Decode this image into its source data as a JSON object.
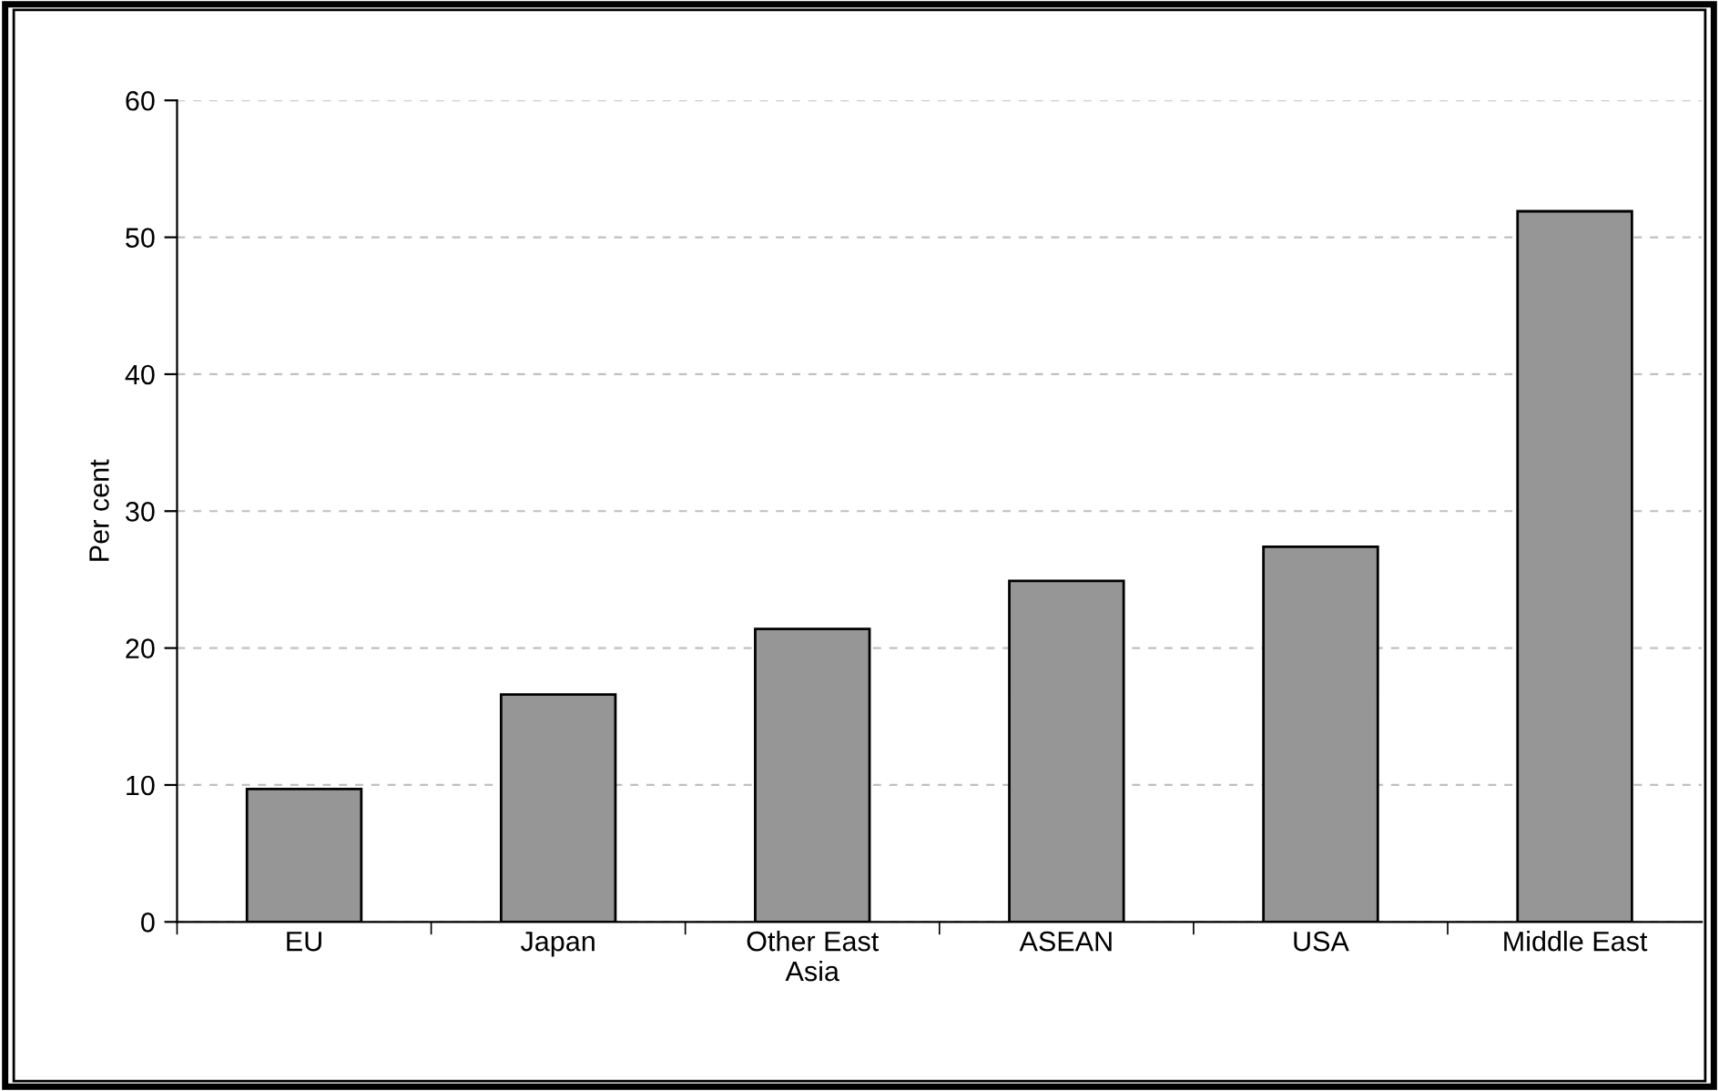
{
  "chart_data": {
    "type": "bar",
    "ylabel": "Per cent",
    "categories": [
      "EU",
      "Japan",
      "Other East\nAsia",
      "ASEAN",
      "USA",
      "Middle East"
    ],
    "values": [
      9.7,
      16.6,
      21.4,
      24.9,
      27.4,
      51.9
    ],
    "color": "#969696",
    "ylim": [
      0,
      60
    ],
    "yticks": [
      0,
      10,
      20,
      30,
      40,
      50,
      60
    ],
    "grid": "y",
    "legend": false
  }
}
